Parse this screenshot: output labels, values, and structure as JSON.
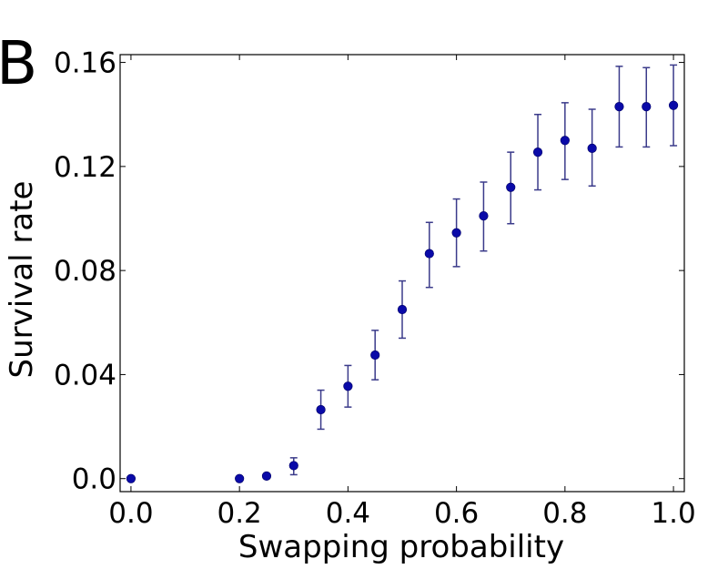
{
  "panel_label": "B",
  "colors": {
    "marker": "#0a0aa8",
    "errorbar": "#3a3a8a",
    "axes": "#000000",
    "background": "#ffffff"
  },
  "chart_data": {
    "type": "scatter",
    "title": "",
    "xlabel": "Swapping probability",
    "ylabel": "Survival rate",
    "xlim": [
      -0.02,
      1.02
    ],
    "ylim": [
      -0.005,
      0.163
    ],
    "xticks": [
      0.0,
      0.2,
      0.4,
      0.6,
      0.8,
      1.0
    ],
    "xtick_labels": [
      "0.0",
      "0.2",
      "0.4",
      "0.6",
      "0.8",
      "1.0"
    ],
    "yticks": [
      0.0,
      0.04,
      0.08,
      0.12,
      0.16
    ],
    "ytick_labels": [
      "0.0",
      "0.04",
      "0.08",
      "0.12",
      "0.16"
    ],
    "grid": false,
    "legend": "none",
    "marker": "circle",
    "series": [
      {
        "x": [
          0.0,
          0.2,
          0.25,
          0.3,
          0.35,
          0.4,
          0.45,
          0.5,
          0.55,
          0.6,
          0.65,
          0.7,
          0.75,
          0.8,
          0.85,
          0.9,
          0.95,
          1.0
        ],
        "y": [
          0.0,
          0.0,
          0.001,
          0.005,
          0.0265,
          0.0355,
          0.0475,
          0.065,
          0.0865,
          0.0945,
          0.101,
          0.112,
          0.1255,
          0.13,
          0.127,
          0.143,
          0.143,
          0.1435
        ],
        "yerr_low": [
          0.0,
          0.0,
          0.0,
          0.0035,
          0.0075,
          0.008,
          0.0095,
          0.011,
          0.013,
          0.013,
          0.0135,
          0.014,
          0.0145,
          0.015,
          0.0145,
          0.0155,
          0.0155,
          0.0155
        ],
        "yerr_high": [
          0.0,
          0.0,
          0.0,
          0.003,
          0.0075,
          0.008,
          0.0095,
          0.011,
          0.012,
          0.013,
          0.013,
          0.0135,
          0.0145,
          0.0145,
          0.015,
          0.0155,
          0.015,
          0.0155
        ]
      }
    ]
  }
}
